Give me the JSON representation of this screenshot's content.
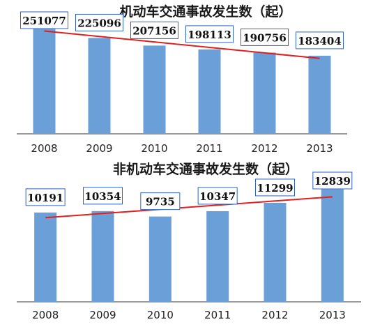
{
  "colors": {
    "bar": "#6a9fd8",
    "trend": "#e0201f",
    "label_border": "#2e63c0",
    "axis": "#333333"
  },
  "chart_data": [
    {
      "type": "bar",
      "title": "机动车交通事故发生数（起）",
      "categories": [
        "2008",
        "2009",
        "2010",
        "2011",
        "2012",
        "2013"
      ],
      "values": [
        251077,
        225096,
        207156,
        198113,
        190756,
        183404
      ],
      "ylim": [
        0,
        270000
      ],
      "trendline": "linear",
      "grid": false
    },
    {
      "type": "bar",
      "title": "非机动车交通事故发生数（起）",
      "categories": [
        "2008",
        "2009",
        "2010",
        "2011",
        "2012",
        "2013"
      ],
      "values": [
        10191,
        10354,
        9735,
        10347,
        11299,
        12839
      ],
      "ylim": [
        0,
        14000
      ],
      "trendline": "linear",
      "grid": false
    }
  ]
}
